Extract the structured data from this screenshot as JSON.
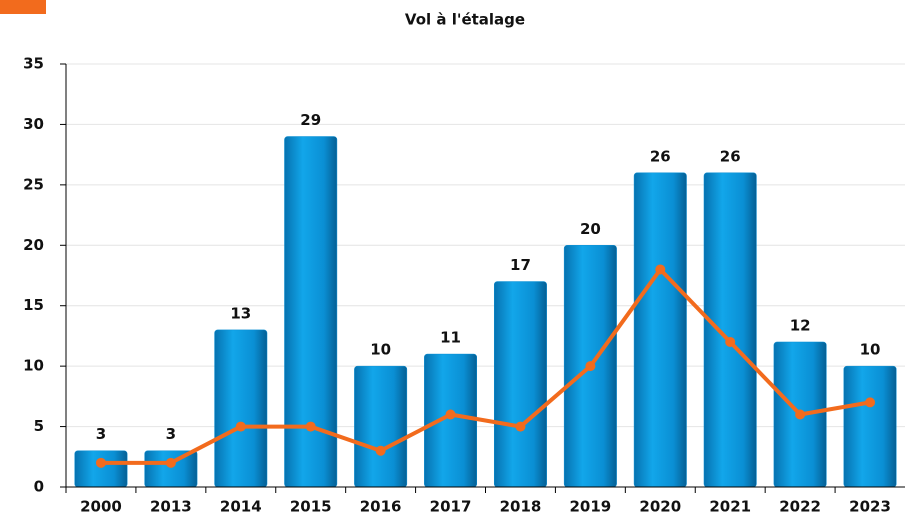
{
  "chart_data": {
    "type": "bar",
    "title": "Vol à l'étalage",
    "categories": [
      "2000",
      "2013",
      "2014",
      "2015",
      "2016",
      "2017",
      "2018",
      "2019",
      "2020",
      "2021",
      "2022",
      "2023"
    ],
    "series": [
      {
        "type": "bar",
        "color": "#0a8fd4",
        "values": [
          3,
          3,
          13,
          29,
          10,
          11,
          17,
          20,
          26,
          26,
          12,
          10
        ]
      },
      {
        "type": "line",
        "color": "#f26b1d",
        "values": [
          2,
          2,
          5,
          5,
          3,
          6,
          5,
          10,
          18,
          12,
          6,
          7
        ]
      }
    ],
    "ylim": [
      0,
      35
    ],
    "yticks": [
      0,
      5,
      10,
      15,
      20,
      25,
      30,
      35
    ],
    "grid": true
  }
}
